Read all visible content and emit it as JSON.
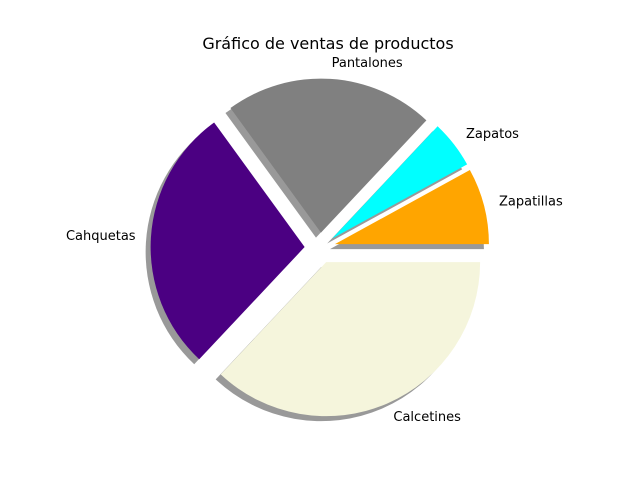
{
  "chart_data": {
    "type": "pie",
    "title": "Gráfico de ventas de productos",
    "start_angle_deg": 0,
    "direction": "counterclockwise",
    "shadow": true,
    "labels": [
      "Zapatillas",
      "Zapatos",
      "Pantalones",
      "Cahquetas",
      "Calcetines"
    ],
    "values": [
      8,
      5,
      22,
      28,
      37
    ],
    "colors": [
      "#ffa500",
      "#00ffff",
      "#808080",
      "#4b0082",
      "#f5f5dc"
    ],
    "explode": [
      0.1,
      0.1,
      0.1,
      0.1,
      0.1
    ]
  }
}
